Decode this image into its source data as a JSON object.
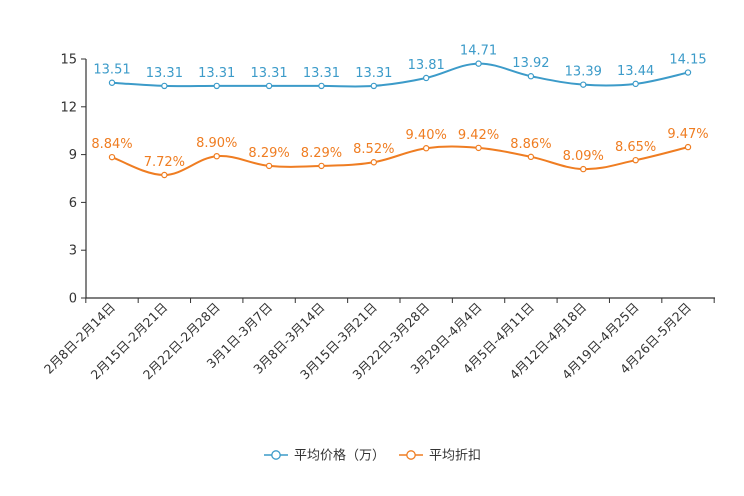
{
  "chart_data": {
    "type": "line",
    "title": "",
    "xlabel": "",
    "ylabel": "",
    "ylim": [
      0,
      15
    ],
    "yticks": [
      0,
      3,
      6,
      9,
      12,
      15
    ],
    "grid": false,
    "categories": [
      "2月8日-2月14日",
      "2月15日-2月21日",
      "2月22日-2月28日",
      "3月1日-3月7日",
      "3月8日-3月14日",
      "3月15日-3月21日",
      "3月22日-3月28日",
      "3月29日-4月4日",
      "4月5日-4月11日",
      "4月12日-4月18日",
      "4月19日-4月25日",
      "4月26日-5月2日"
    ],
    "series": [
      {
        "name": "平均价格（万）",
        "color": "#3c9bc9",
        "values": [
          13.51,
          13.31,
          13.31,
          13.31,
          13.31,
          13.31,
          13.81,
          14.71,
          13.92,
          13.39,
          13.44,
          14.15
        ],
        "labels": [
          "13.51",
          "13.31",
          "13.31",
          "13.31",
          "13.31",
          "13.31",
          "13.81",
          "14.71",
          "13.92",
          "13.39",
          "13.44",
          "14.15"
        ]
      },
      {
        "name": "平均折扣",
        "color": "#ef7d22",
        "values": [
          8.84,
          7.72,
          8.9,
          8.29,
          8.29,
          8.52,
          9.4,
          9.42,
          8.86,
          8.09,
          8.65,
          9.47
        ],
        "labels": [
          "8.84%",
          "7.72%",
          "8.90%",
          "8.29%",
          "8.29%",
          "8.52%",
          "9.40%",
          "9.42%",
          "8.86%",
          "8.09%",
          "8.65%",
          "9.47%"
        ]
      }
    ],
    "legend_position": "bottom-center"
  }
}
